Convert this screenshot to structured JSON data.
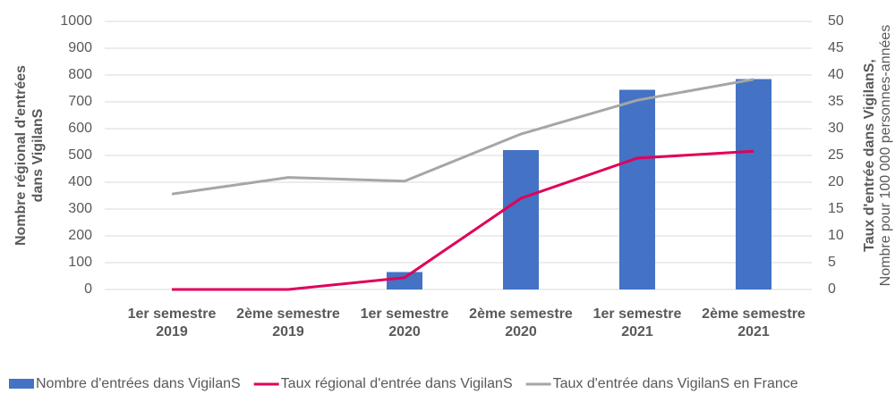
{
  "chart_data": {
    "type": "bar-line",
    "y_label": "Nombre régional d'entrées dans VigilanS",
    "y2_label_bold": "Taux d'entrée dans VigilanS,",
    "y2_label": "Nombre pour 100 000 personnes-années",
    "categories": [
      "1er semestre 2019",
      "2ème semestre 2019",
      "1er semestre 2020",
      "2ème semestre 2020",
      "1er semestre 2021",
      "2ème semestre 2021"
    ],
    "series": [
      {
        "name": "Nombre d'entrées dans VigilanS",
        "type": "bar",
        "color": "#4472c4",
        "values": [
          0,
          0,
          65,
          520,
          745,
          785
        ]
      },
      {
        "name": "Taux régional d'entrée dans VigilanS",
        "type": "line",
        "axis": "y2",
        "color": "#e0005a",
        "values": [
          0,
          0,
          2.2,
          17,
          24.5,
          25.8
        ]
      },
      {
        "name": "Taux d'entrée dans VigilanS en France",
        "type": "line",
        "axis": "y2",
        "color": "#a6a6a6",
        "values": [
          17.8,
          20.9,
          20.2,
          29,
          35.3,
          39.2
        ]
      }
    ],
    "ylim": [
      0,
      1000
    ],
    "yticks": [
      0,
      100,
      200,
      300,
      400,
      500,
      600,
      700,
      800,
      900,
      1000
    ],
    "y2lim": [
      0,
      50
    ],
    "y2ticks": [
      0,
      5,
      10,
      15,
      20,
      25,
      30,
      35,
      40,
      45,
      50
    ],
    "grid": true
  }
}
